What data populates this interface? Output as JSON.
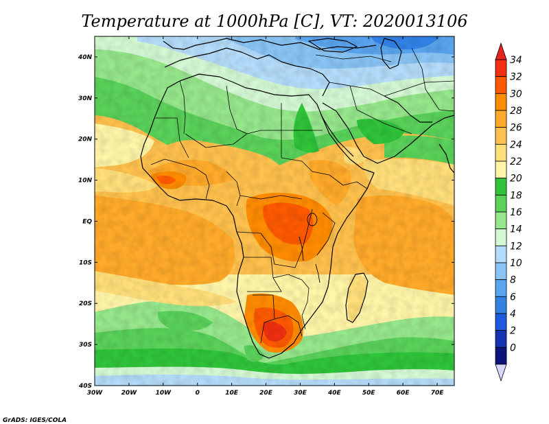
{
  "title": "Temperature at 1000hPa [C], VT: 2020013106",
  "credit": "GrADS: IGES/COLA",
  "map": {
    "lon_range": [
      -30,
      75
    ],
    "lat_range": [
      -40,
      45
    ],
    "lon_ticks": [
      {
        "value": -30,
        "label": "30W"
      },
      {
        "value": -20,
        "label": "20W"
      },
      {
        "value": -10,
        "label": "10W"
      },
      {
        "value": 0,
        "label": "0"
      },
      {
        "value": 10,
        "label": "10E"
      },
      {
        "value": 20,
        "label": "20E"
      },
      {
        "value": 30,
        "label": "30E"
      },
      {
        "value": 40,
        "label": "40E"
      },
      {
        "value": 50,
        "label": "50E"
      },
      {
        "value": 60,
        "label": "60E"
      },
      {
        "value": 70,
        "label": "70E"
      }
    ],
    "lat_ticks": [
      {
        "value": 40,
        "label": "40N"
      },
      {
        "value": 30,
        "label": "30N"
      },
      {
        "value": 20,
        "label": "20N"
      },
      {
        "value": 10,
        "label": "10N"
      },
      {
        "value": 0,
        "label": "EQ"
      },
      {
        "value": -10,
        "label": "10S"
      },
      {
        "value": -20,
        "label": "20S"
      },
      {
        "value": -30,
        "label": "30S"
      },
      {
        "value": -40,
        "label": "40S"
      }
    ]
  },
  "colorbar": {
    "labels": [
      "34",
      "32",
      "30",
      "28",
      "26",
      "24",
      "22",
      "20",
      "18",
      "16",
      "14",
      "12",
      "10",
      "8",
      "6",
      "4",
      "2",
      "0"
    ],
    "colors": [
      "#f03010",
      "#ff5a00",
      "#ff8c00",
      "#ffaa2a",
      "#ffc14d",
      "#ffdf7a",
      "#fff5a8",
      "#2fc43a",
      "#5ad25a",
      "#96e68c",
      "#d4f8d4",
      "#b4dcfa",
      "#8ac4f5",
      "#5aa5ef",
      "#3282e6",
      "#1e5adc",
      "#1432b4",
      "#0a147a"
    ],
    "max_color": "#e8241e",
    "min_color": "#d8d8ff"
  }
}
